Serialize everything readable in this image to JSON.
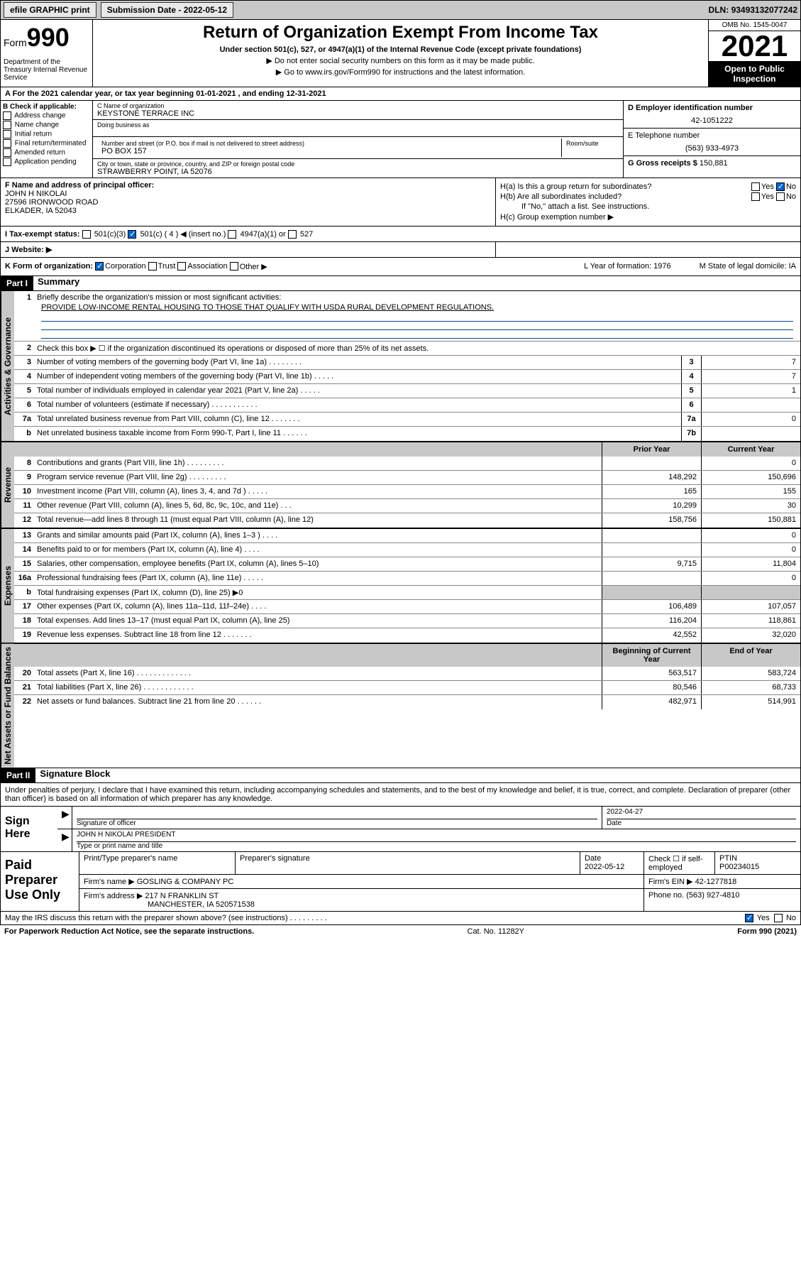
{
  "top": {
    "efile": "efile GRAPHIC print",
    "sub_label": "Submission Date",
    "sub_date": "2022-05-12",
    "dln_label": "DLN:",
    "dln": "93493132077242"
  },
  "header": {
    "form": "Form",
    "form_num": "990",
    "dept": "Department of the Treasury Internal Revenue Service",
    "title": "Return of Organization Exempt From Income Tax",
    "sub1": "Under section 501(c), 527, or 4947(a)(1) of the Internal Revenue Code (except private foundations)",
    "sub2": "▶ Do not enter social security numbers on this form as it may be made public.",
    "sub3": "▶ Go to www.irs.gov/Form990 for instructions and the latest information.",
    "omb": "OMB No. 1545-0047",
    "year": "2021",
    "open": "Open to Public Inspection"
  },
  "row_a": "A For the 2021 calendar year, or tax year beginning 01-01-2021    , and ending 12-31-2021",
  "b": {
    "hdr": "B Check if applicable:",
    "opts": [
      "Address change",
      "Name change",
      "Initial return",
      "Final return/terminated",
      "Amended return",
      "Application pending"
    ]
  },
  "c": {
    "name_lbl": "C Name of organization",
    "name": "KEYSTONE TERRACE INC",
    "dba_lbl": "Doing business as",
    "dba": "",
    "addr_lbl": "Number and street (or P.O. box if mail is not delivered to street address)",
    "room_lbl": "Room/suite",
    "addr": "PO BOX 157",
    "city_lbl": "City or town, state or province, country, and ZIP or foreign postal code",
    "city": "STRAWBERRY POINT, IA  52076"
  },
  "d": {
    "ein_lbl": "D Employer identification number",
    "ein": "42-1051222",
    "tel_lbl": "E Telephone number",
    "tel": "(563) 933-4973",
    "gross_lbl": "G Gross receipts $",
    "gross": "150,881"
  },
  "f": {
    "lbl": "F Name and address of principal officer:",
    "name": "JOHN H NIKOLAI",
    "addr1": "27596 IRONWOOD ROAD",
    "addr2": "ELKADER, IA   52043"
  },
  "h": {
    "a": "H(a)  Is this a group return for subordinates?",
    "a_yes": "Yes",
    "a_no": "No",
    "b": "H(b)  Are all subordinates included?",
    "b_yes": "Yes",
    "b_no": "No",
    "b_note": "If \"No,\" attach a list. See instructions.",
    "c": "H(c)  Group exemption number ▶"
  },
  "i": {
    "lbl": "I   Tax-exempt status:",
    "o1": "501(c)(3)",
    "o2": "501(c) ( 4 ) ◀ (insert no.)",
    "o3": "4947(a)(1) or",
    "o4": "527"
  },
  "j": {
    "lbl": "J   Website: ▶"
  },
  "k": {
    "lbl": "K Form of organization:",
    "o1": "Corporation",
    "o2": "Trust",
    "o3": "Association",
    "o4": "Other ▶",
    "l": "L Year of formation: 1976",
    "m": "M State of legal domicile: IA"
  },
  "part1": {
    "hdr": "Part I",
    "title": "Summary"
  },
  "summary": {
    "sections": [
      {
        "label": "Activities & Governance",
        "lines": [
          {
            "n": "1",
            "t": "Briefly describe the organization's mission or most significant activities:",
            "mission": "PROVIDE LOW-INCOME RENTAL HOUSING TO THOSE THAT QUALIFY WITH USDA RURAL DEVELOPMENT REGULATIONS."
          },
          {
            "n": "2",
            "t": "Check this box ▶ ☐  if the organization discontinued its operations or disposed of more than 25% of its net assets."
          },
          {
            "n": "3",
            "t": "Number of voting members of the governing body (Part VI, line 1a)   .   .   .   .   .   .   .   .",
            "box": "3",
            "v2": "7"
          },
          {
            "n": "4",
            "t": "Number of independent voting members of the governing body (Part VI, line 1b)   .   .   .   .   .",
            "box": "4",
            "v2": "7"
          },
          {
            "n": "5",
            "t": "Total number of individuals employed in calendar year 2021 (Part V, line 2a)   .   .   .   .   .",
            "box": "5",
            "v2": "1"
          },
          {
            "n": "6",
            "t": "Total number of volunteers (estimate if necessary)   .   .   .   .   .   .   .   .   .   .   .",
            "box": "6",
            "v2": ""
          },
          {
            "n": "7a",
            "t": "Total unrelated business revenue from Part VIII, column (C), line 12   .   .   .   .   .   .   .",
            "box": "7a",
            "v2": "0"
          },
          {
            "n": "b",
            "t": "Net unrelated business taxable income from Form 990-T, Part I, line 11   .   .   .   .   .   .",
            "box": "7b",
            "v2": ""
          }
        ]
      },
      {
        "label": "Revenue",
        "col1": "Prior Year",
        "col2": "Current Year",
        "lines": [
          {
            "n": "8",
            "t": "Contributions and grants (Part VIII, line 1h)   .   .   .   .   .   .   .   .   .",
            "v1": "",
            "v2": "0"
          },
          {
            "n": "9",
            "t": "Program service revenue (Part VIII, line 2g)   .   .   .   .   .   .   .   .   .",
            "v1": "148,292",
            "v2": "150,696"
          },
          {
            "n": "10",
            "t": "Investment income (Part VIII, column (A), lines 3, 4, and 7d )   .   .   .   .   .",
            "v1": "165",
            "v2": "155"
          },
          {
            "n": "11",
            "t": "Other revenue (Part VIII, column (A), lines 5, 6d, 8c, 9c, 10c, and 11e)   .   .   .",
            "v1": "10,299",
            "v2": "30"
          },
          {
            "n": "12",
            "t": "Total revenue—add lines 8 through 11 (must equal Part VIII, column (A), line 12)",
            "v1": "158,756",
            "v2": "150,881"
          }
        ]
      },
      {
        "label": "Expenses",
        "lines": [
          {
            "n": "13",
            "t": "Grants and similar amounts paid (Part IX, column (A), lines 1–3 )   .   .   .   .",
            "v1": "",
            "v2": "0"
          },
          {
            "n": "14",
            "t": "Benefits paid to or for members (Part IX, column (A), line 4)   .   .   .   .",
            "v1": "",
            "v2": "0"
          },
          {
            "n": "15",
            "t": "Salaries, other compensation, employee benefits (Part IX, column (A), lines 5–10)",
            "v1": "9,715",
            "v2": "11,804"
          },
          {
            "n": "16a",
            "t": "Professional fundraising fees (Part IX, column (A), line 11e)   .   .   .   .   .",
            "v1": "",
            "v2": "0"
          },
          {
            "n": "b",
            "t": "Total fundraising expenses (Part IX, column (D), line 25) ▶0",
            "shaded": true
          },
          {
            "n": "17",
            "t": "Other expenses (Part IX, column (A), lines 11a–11d, 11f–24e)   .   .   .   .",
            "v1": "106,489",
            "v2": "107,057"
          },
          {
            "n": "18",
            "t": "Total expenses. Add lines 13–17 (must equal Part IX, column (A), line 25)",
            "v1": "116,204",
            "v2": "118,861"
          },
          {
            "n": "19",
            "t": "Revenue less expenses. Subtract line 18 from line 12   .   .   .   .   .   .   .",
            "v1": "42,552",
            "v2": "32,020"
          }
        ]
      },
      {
        "label": "Net Assets or Fund Balances",
        "col1": "Beginning of Current Year",
        "col2": "End of Year",
        "lines": [
          {
            "n": "20",
            "t": "Total assets (Part X, line 16)   .   .   .   .   .   .   .   .   .   .   .   .   .",
            "v1": "563,517",
            "v2": "583,724"
          },
          {
            "n": "21",
            "t": "Total liabilities (Part X, line 26)   .   .   .   .   .   .   .   .   .   .   .   .",
            "v1": "80,546",
            "v2": "68,733"
          },
          {
            "n": "22",
            "t": "Net assets or fund balances. Subtract line 21 from line 20   .   .   .   .   .   .",
            "v1": "482,971",
            "v2": "514,991"
          }
        ]
      }
    ]
  },
  "part2": {
    "hdr": "Part II",
    "title": "Signature Block"
  },
  "penalty": "Under penalties of perjury, I declare that I have examined this return, including accompanying schedules and statements, and to the best of my knowledge and belief, it is true, correct, and complete. Declaration of preparer (other than officer) is based on all information of which preparer has any knowledge.",
  "sign": {
    "lbl": "Sign Here",
    "sig_lbl": "Signature of officer",
    "date_lbl": "Date",
    "date": "2022-04-27",
    "name": "JOHN H NIKOLAI  PRESIDENT",
    "name_lbl": "Type or print name and title"
  },
  "prep": {
    "lbl": "Paid Preparer Use Only",
    "c1": "Print/Type preparer's name",
    "c2": "Preparer's signature",
    "c3": "Date",
    "c3v": "2022-05-12",
    "c4": "Check ☐ if self-employed",
    "c5": "PTIN",
    "c5v": "P00234015",
    "firm_lbl": "Firm's name    ▶",
    "firm": "GOSLING & COMPANY PC",
    "ein_lbl": "Firm's EIN ▶",
    "ein": "42-1277818",
    "addr_lbl": "Firm's address ▶",
    "addr1": "217 N FRANKLIN ST",
    "addr2": "MANCHESTER, IA  520571538",
    "phone_lbl": "Phone no.",
    "phone": "(563) 927-4810"
  },
  "discuss": {
    "q": "May the IRS discuss this return with the preparer shown above? (see instructions)   .   .   .   .   .   .   .   .   .",
    "yes": "Yes",
    "no": "No"
  },
  "footer": {
    "left": "For Paperwork Reduction Act Notice, see the separate instructions.",
    "mid": "Cat. No. 11282Y",
    "right": "Form 990 (2021)"
  }
}
